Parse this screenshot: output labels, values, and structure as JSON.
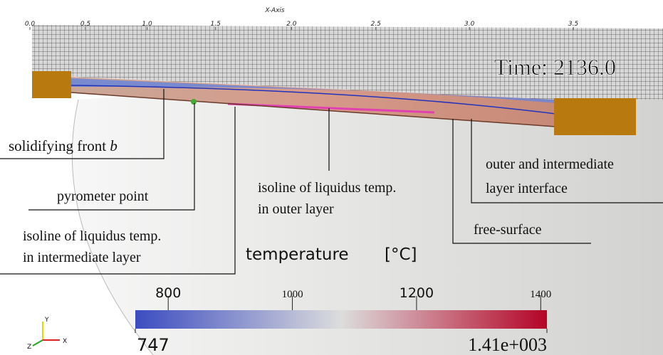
{
  "axis": {
    "title": "X-Axis",
    "ticks": [
      {
        "value": 0,
        "label": "0.0"
      },
      0.5,
      {
        "value": 1,
        "label": "1.0"
      },
      1.5,
      {
        "value": 2,
        "label": "2.0"
      },
      2.5,
      {
        "value": 3,
        "label": "3.0"
      },
      3.5
    ]
  },
  "time_label": "Time: 2136.0",
  "annotations": {
    "solidifying_front": {
      "text": "solidifying front ",
      "symbol": "b"
    },
    "pyrometer_point": "pyrometer point",
    "isoline_intermediate": [
      "isoline of liquidus temp.",
      "in intermediate layer"
    ],
    "isoline_outer": [
      "isoline of liquidus temp.",
      "in outer layer"
    ],
    "free_surface": "free-surface",
    "interface": [
      "outer and intermediate",
      "layer  interface"
    ]
  },
  "colorbar": {
    "title": "temperature",
    "unit": "[°C]",
    "range": [
      747,
      1410
    ],
    "min_label": "747",
    "max_label": "1.41e+003",
    "ticks": [
      800,
      1000,
      1200,
      1400
    ]
  },
  "triad": {
    "y": "Y",
    "z": "Z",
    "x": "X"
  }
}
